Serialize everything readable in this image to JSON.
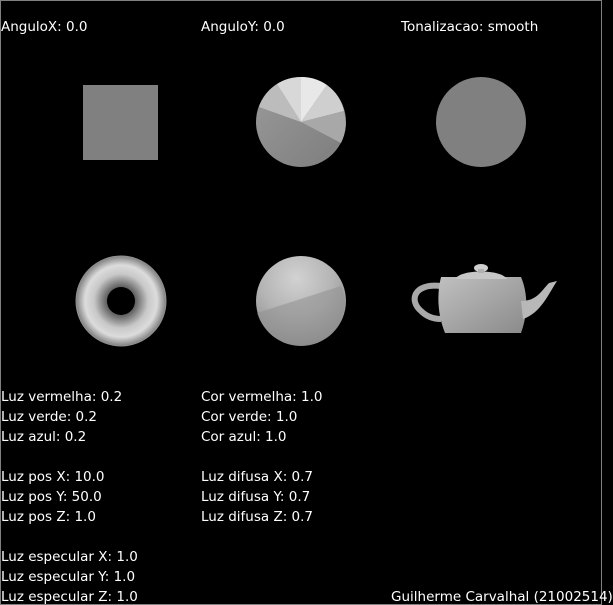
{
  "header": {
    "angle_x": "AnguloX: 0.0",
    "angle_y": "AnguloY: 0.0",
    "shading": "Tonalizacao: smooth"
  },
  "scene": {
    "objects": [
      "cube",
      "cone",
      "cylinder",
      "torus",
      "sphere",
      "teapot"
    ]
  },
  "light_color": {
    "red": "Luz vermelha: 0.2",
    "green": "Luz verde: 0.2",
    "blue": "Luz azul: 0.2"
  },
  "material_color": {
    "red": "Cor vermelha: 1.0",
    "green": "Cor verde: 1.0",
    "blue": "Cor azul: 1.0"
  },
  "light_position": {
    "x": "Luz pos X: 10.0",
    "y": "Luz pos Y: 50.0",
    "z": "Luz pos Z: 1.0"
  },
  "diffuse": {
    "x": "Luz difusa X: 0.7",
    "y": "Luz difusa Y: 0.7",
    "z": "Luz difusa Z: 0.7"
  },
  "specular": {
    "x": "Luz especular X: 1.0",
    "y": "Luz especular Y: 1.0",
    "z": "Luz especular Z: 1.0"
  },
  "footer": {
    "author": "Guilherme Carvalhal (21002514)"
  },
  "colors": {
    "background": "#000000",
    "text": "#ffffff",
    "object_gray": "#808080"
  }
}
